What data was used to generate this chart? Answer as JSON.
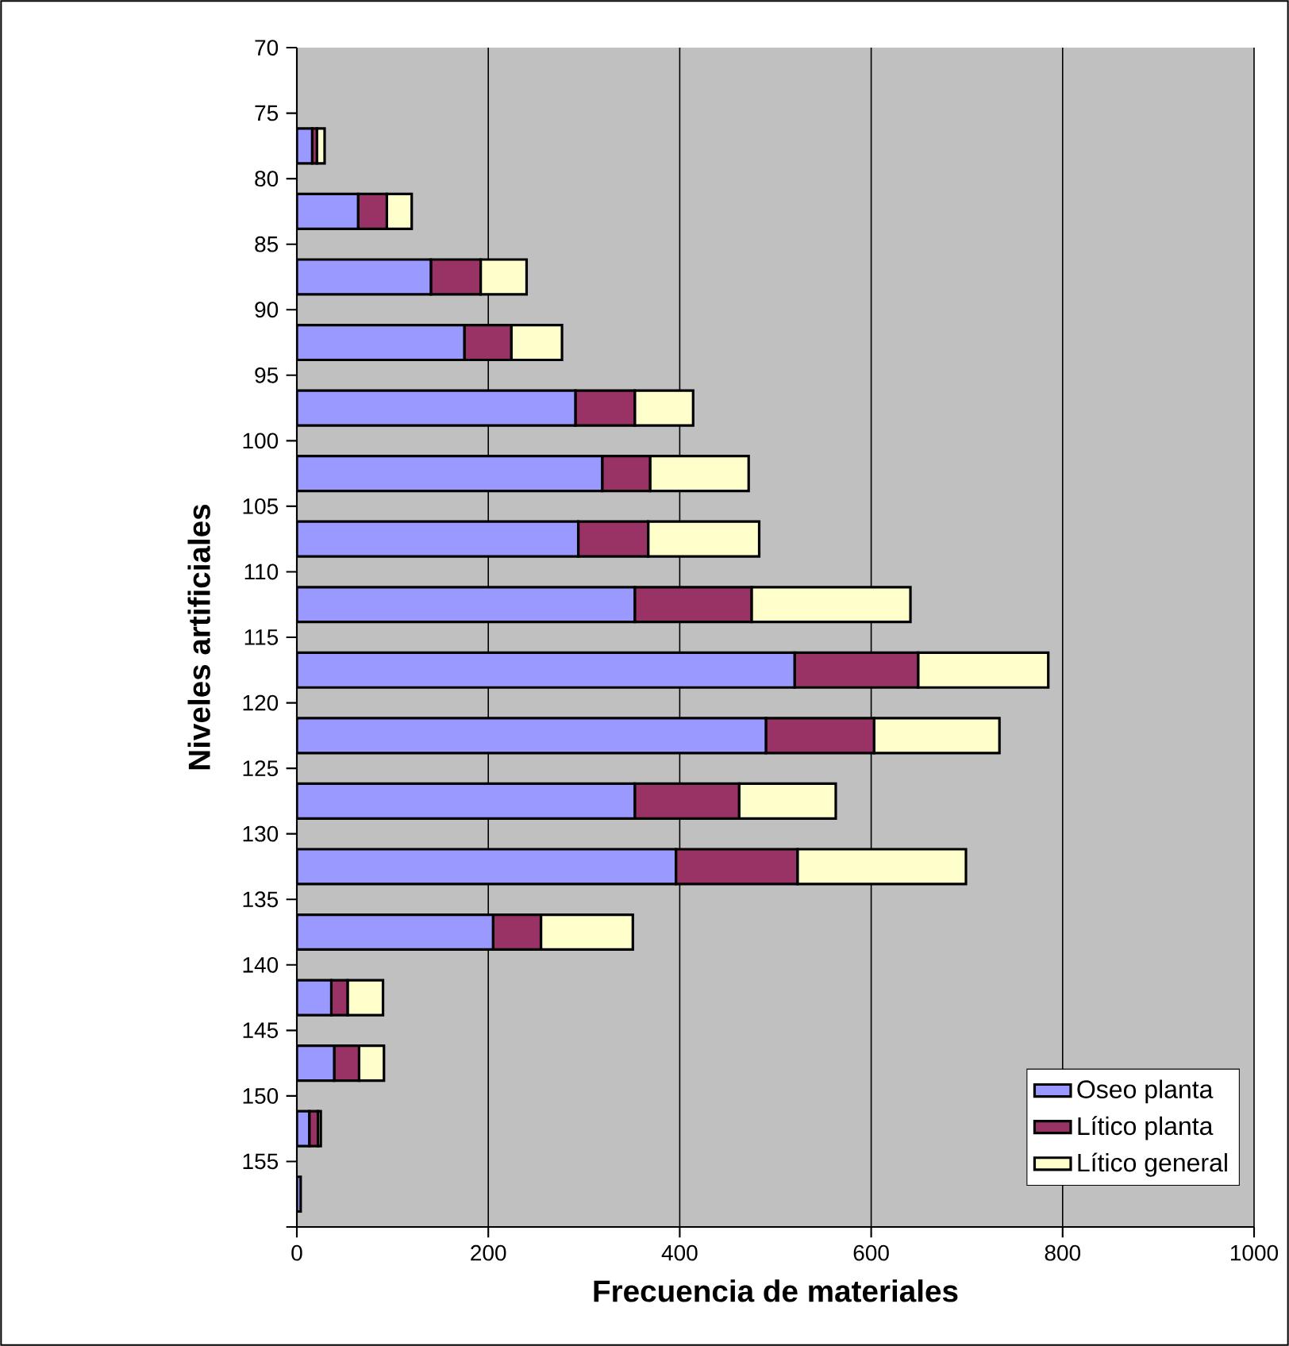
{
  "chart_data": {
    "type": "bar",
    "orientation": "horizontal",
    "stacked": true,
    "x": [
      77.5,
      82.5,
      87.5,
      92.5,
      97.5,
      102.5,
      107.5,
      112.5,
      117.5,
      122.5,
      127.5,
      132.5,
      137.5,
      142.5,
      147.5,
      152.5,
      157.5
    ],
    "series": [
      {
        "name": "Oseo planta",
        "color": "#9999ff",
        "values": [
          16,
          64,
          140,
          175,
          291,
          319,
          294,
          353,
          520,
          490,
          353,
          396,
          205,
          36,
          39,
          13,
          4
        ]
      },
      {
        "name": "Lítico planta",
        "color": "#993366",
        "values": [
          5,
          30,
          52,
          49,
          62,
          50,
          73,
          122,
          129,
          113,
          109,
          127,
          50,
          17,
          26,
          9,
          null
        ]
      },
      {
        "name": "Lítico general",
        "color": "#ffffcc",
        "values": [
          8,
          26,
          48,
          53,
          61,
          103,
          116,
          166,
          136,
          131,
          101,
          176,
          96,
          37,
          26,
          3,
          null
        ]
      }
    ],
    "xlabel": "Frecuencia de materiales",
    "ylabel": "Niveles artificiales",
    "xlim": [
      0,
      1000
    ],
    "xticks": [
      0,
      200,
      400,
      600,
      800,
      1000
    ],
    "ylim": [
      160,
      70
    ],
    "yticks": [
      70,
      75,
      80,
      85,
      90,
      95,
      100,
      105,
      110,
      115,
      120,
      125,
      130,
      135,
      140,
      145,
      150,
      155,
      {
        "value": 160,
        "label": null
      }
    ],
    "grid": "x",
    "legend": "bottom right"
  }
}
